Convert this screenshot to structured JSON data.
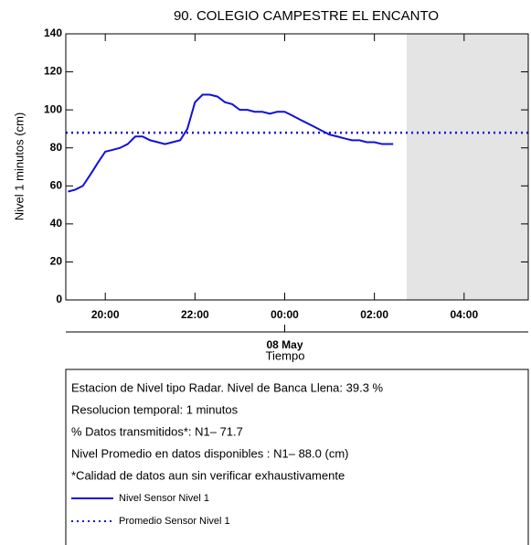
{
  "chart_data": {
    "type": "line",
    "title": "90. COLEGIO CAMPESTRE EL ENCANTO",
    "ylabel": "Nivel 1 minutos (cm)",
    "xlabel": "Tiempo",
    "xlim": [
      19.12,
      29.43
    ],
    "ylim": [
      0,
      140
    ],
    "yticks": [
      0,
      20,
      40,
      60,
      80,
      100,
      120,
      140
    ],
    "xticks": [
      {
        "value": 20,
        "label": "20:00"
      },
      {
        "value": 22,
        "label": "22:00"
      },
      {
        "value": 24,
        "label": "00:00"
      },
      {
        "value": 26,
        "label": "02:00"
      },
      {
        "value": 28,
        "label": "04:00"
      }
    ],
    "date_ticks": [
      {
        "value": 24,
        "label": "08 May"
      }
    ],
    "shade_from": 26.72,
    "x": [
      19.17,
      19.33,
      19.5,
      19.67,
      19.83,
      20,
      20.17,
      20.33,
      20.5,
      20.67,
      20.83,
      21,
      21.17,
      21.33,
      21.5,
      21.67,
      21.83,
      22,
      22.17,
      22.33,
      22.5,
      22.67,
      22.83,
      23,
      23.17,
      23.33,
      23.5,
      23.67,
      23.83,
      24,
      24.17,
      24.33,
      24.5,
      24.67,
      24.83,
      25,
      25.17,
      25.33,
      25.5,
      25.67,
      25.83,
      26,
      26.17,
      26.33,
      26.42
    ],
    "series": [
      {
        "name": "Nivel Sensor Nivel 1",
        "color": "#1010dd",
        "values": [
          57,
          58,
          60,
          66,
          72,
          78,
          79,
          80,
          82,
          86,
          86,
          84,
          83,
          82,
          83,
          84,
          90,
          104,
          108,
          108,
          107,
          104,
          103,
          100,
          100,
          99,
          99,
          98,
          99,
          99,
          97,
          95,
          93,
          91,
          89,
          87,
          86,
          85,
          84,
          84,
          83,
          83,
          82,
          82,
          82
        ]
      }
    ],
    "reference_line": {
      "name": "Promedio Sensor Nivel 1",
      "value": 88,
      "color": "#1010dd"
    },
    "notes": [
      "Estacion de Nivel tipo Radar. Nivel de Banca Llena: 39.3 %",
      "Resolucion temporal: 1 minutos",
      "% Datos transmitidos*: N1– 71.7",
      "Nivel Promedio en datos disponibles : N1– 88.0 (cm)",
      "*Calidad de datos aun sin verificar exhaustivamente"
    ]
  }
}
